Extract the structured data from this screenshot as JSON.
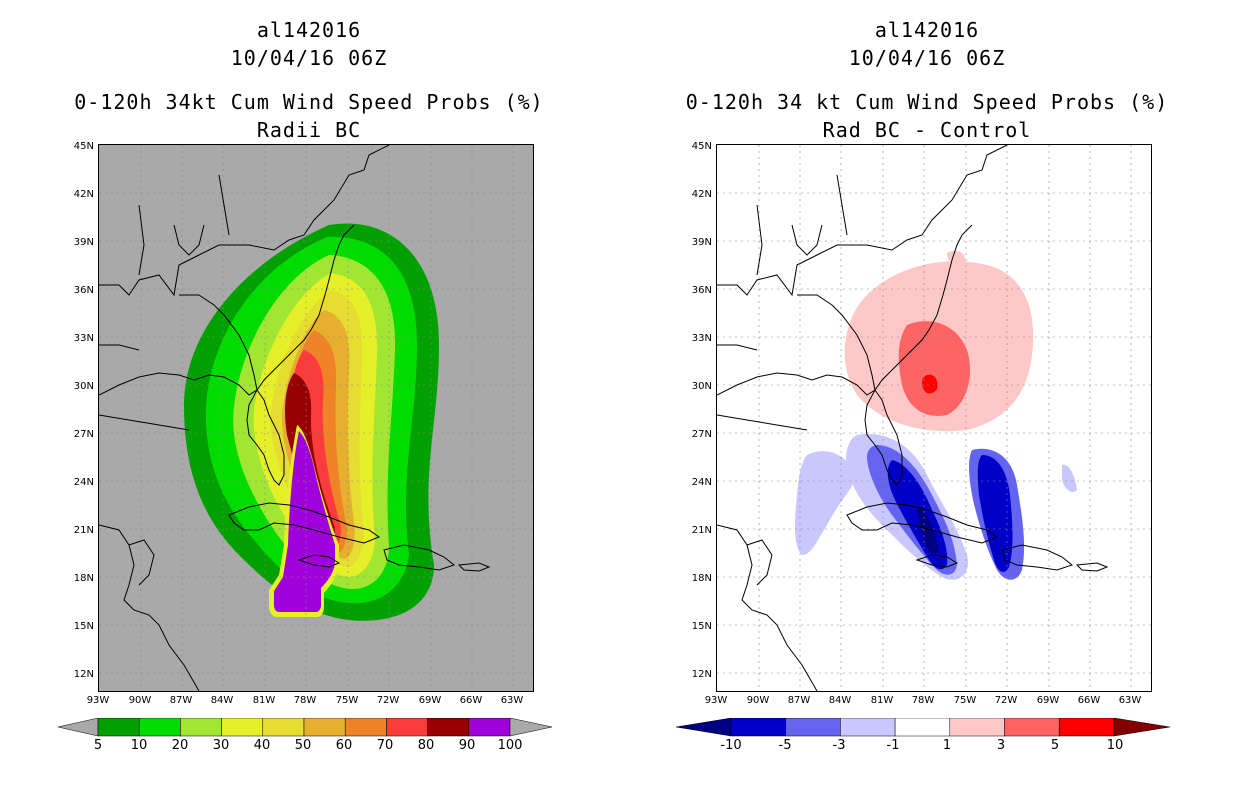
{
  "left_panel": {
    "storm_id": "al142016",
    "datetime": "10/04/16 06Z",
    "title": "0-120h 34kt Cum Wind Speed Probs (%)",
    "subtitle": "Radii BC",
    "background_color": "#a9a9a9",
    "colorbar": {
      "colors": [
        "#00a000",
        "#00dc00",
        "#a0e632",
        "#e6f028",
        "#e6dc32",
        "#e6af2d",
        "#f08228",
        "#fa3c3c",
        "#960000",
        "#a000dc"
      ],
      "under_color": "#a9a9a9",
      "over_color": "#a9a9a9",
      "labels": [
        "5",
        "10",
        "20",
        "30",
        "40",
        "50",
        "60",
        "70",
        "80",
        "90",
        "100"
      ]
    }
  },
  "right_panel": {
    "storm_id": "al142016",
    "datetime": "10/04/16 06Z",
    "title": "0-120h 34 kt Cum Wind Speed Probs (%)",
    "subtitle": "Rad BC - Control",
    "background_color": "#ffffff",
    "colorbar": {
      "colors": [
        "#0000c8",
        "#6464f0",
        "#c8c8ff",
        "#ffffff",
        "#ffc8c8",
        "#ff6464",
        "#ff0000"
      ],
      "under_color": "#000082",
      "over_color": "#820000",
      "labels": [
        "-10",
        "-5",
        "-3",
        "-1",
        "1",
        "3",
        "5",
        "10"
      ]
    }
  },
  "axes": {
    "lat_labels": [
      "45N",
      "42N",
      "39N",
      "36N",
      "33N",
      "30N",
      "27N",
      "24N",
      "21N",
      "18N",
      "15N",
      "12N"
    ],
    "lon_labels": [
      "93W",
      "90W",
      "87W",
      "84W",
      "81W",
      "78W",
      "75W",
      "72W",
      "69W",
      "66W",
      "63W"
    ]
  }
}
